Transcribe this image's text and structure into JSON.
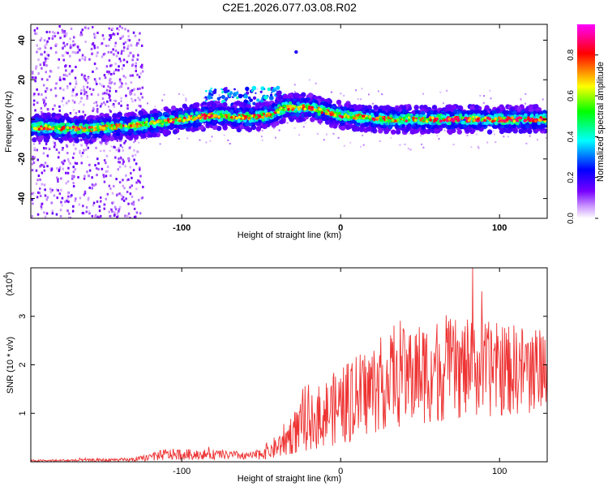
{
  "chart_data": [
    {
      "type": "heatmap",
      "title": "C2E1.2026.077.03.08.R02",
      "xlabel": "Height of straight line (km)",
      "ylabel": "Frequency (Hz)",
      "xlim": [
        -195,
        130
      ],
      "ylim": [
        -50,
        48
      ],
      "xticks": [
        -100,
        0,
        100
      ],
      "xtick_labels": [
        "-100",
        "0",
        "100"
      ],
      "yticks": [
        40,
        20,
        0,
        -20,
        -40
      ],
      "ytick_labels": [
        "40",
        "20",
        "0",
        "-20",
        "-40"
      ],
      "colorbar": {
        "label": "Normalized spectral amplitude",
        "range": [
          0.0,
          0.95
        ],
        "ticks": [
          0.0,
          0.2,
          0.4,
          0.6,
          0.8
        ],
        "tick_labels": [
          "0.0",
          "0.2",
          "0.4",
          "0.6",
          "0.8"
        ],
        "colors": [
          "#ffffff",
          "#7700ff",
          "#0000ff",
          "#00ffff",
          "#00ff00",
          "#ffff00",
          "#ff0000",
          "#ff00ff"
        ]
      },
      "band_center": [
        {
          "x": -190,
          "f": -4
        },
        {
          "x": -160,
          "f": -5
        },
        {
          "x": -130,
          "f": -3
        },
        {
          "x": -110,
          "f": -1
        },
        {
          "x": -80,
          "f": 2
        },
        {
          "x": -60,
          "f": 1
        },
        {
          "x": -45,
          "f": 2
        },
        {
          "x": -35,
          "f": 6
        },
        {
          "x": -20,
          "f": 6
        },
        {
          "x": 0,
          "f": 2
        },
        {
          "x": 30,
          "f": 0
        },
        {
          "x": 60,
          "f": 0
        },
        {
          "x": 100,
          "f": 0
        },
        {
          "x": 130,
          "f": 0
        }
      ]
    },
    {
      "type": "line",
      "title": "",
      "xlabel": "Height of straight line (km)",
      "ylabel": "SNR (10 * v/v)",
      "scale_label": "(x10",
      "scale_exponent": "4",
      "scale_suffix": ")",
      "xlim": [
        -195,
        130
      ],
      "ylim": [
        0,
        4.0
      ],
      "xticks": [
        -100,
        0,
        100
      ],
      "xtick_labels": [
        "-100",
        "0",
        "100"
      ],
      "yticks": [
        1,
        2,
        3
      ],
      "ytick_labels": [
        "1",
        "2",
        "3"
      ],
      "series": [
        {
          "name": "SNR",
          "color": "#ee3333",
          "envelope": [
            {
              "x": -195,
              "mean": 0.02,
              "amp": 0.02
            },
            {
              "x": -130,
              "mean": 0.04,
              "amp": 0.04
            },
            {
              "x": -110,
              "mean": 0.15,
              "amp": 0.12
            },
            {
              "x": -80,
              "mean": 0.15,
              "amp": 0.1
            },
            {
              "x": -55,
              "mean": 0.12,
              "amp": 0.08
            },
            {
              "x": -40,
              "mean": 0.3,
              "amp": 0.25
            },
            {
              "x": -30,
              "mean": 0.6,
              "amp": 0.45
            },
            {
              "x": -10,
              "mean": 1.0,
              "amp": 0.7
            },
            {
              "x": 10,
              "mean": 1.3,
              "amp": 0.9
            },
            {
              "x": 30,
              "mean": 1.7,
              "amp": 1.0
            },
            {
              "x": 60,
              "mean": 1.9,
              "amp": 1.1
            },
            {
              "x": 90,
              "mean": 1.9,
              "amp": 1.0
            },
            {
              "x": 130,
              "mean": 1.9,
              "amp": 0.9
            }
          ],
          "peak_value": 4.0,
          "peak_x": 83
        }
      ]
    }
  ]
}
